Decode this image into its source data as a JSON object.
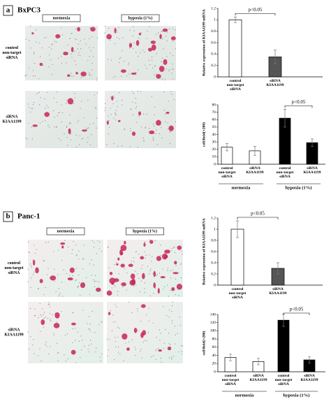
{
  "panels": [
    {
      "label": "a",
      "cell_line": "BxPC3",
      "columns": [
        "normoxia",
        "hypoxia (1%)"
      ],
      "rows": [
        "control non-target siRNA",
        "siRNA KIAA1199"
      ]
    },
    {
      "label": "b",
      "cell_line": "Panc-1",
      "columns": [
        "normoxia",
        "hypoxia (1%)"
      ],
      "rows": [
        "control non-target siRNA",
        "siRNA KIAA1199"
      ]
    }
  ],
  "chart_data": [
    {
      "type": "bar",
      "y_label": "Relative expression of KIAA1199 mRNA",
      "categories": [
        "control non-target siRNA",
        "siRNA KIAA1199"
      ],
      "values": [
        1.0,
        0.35
      ],
      "errors": [
        0.05,
        0.12
      ],
      "colors": [
        "#ffffff",
        "#555555"
      ],
      "ylim": [
        0,
        1.2
      ],
      "yticks": [
        0,
        0.2,
        0.4,
        0.6,
        0.8,
        1,
        1.2
      ],
      "annotation": "p<0.05"
    },
    {
      "type": "bar",
      "y_label": "cell/field(×200)",
      "categories": [
        "control non-target siRNA",
        "siRNA KIAA1199",
        "control non-target siRNA",
        "siRNA KIAA1199"
      ],
      "groups": [
        "normoxia",
        "hypoxia (1%)"
      ],
      "values": [
        23,
        18,
        62,
        29
      ],
      "errors": [
        5,
        6,
        12,
        5
      ],
      "colors": [
        "#ffffff",
        "#ffffff",
        "#000000",
        "#000000"
      ],
      "ylim": [
        0,
        80
      ],
      "yticks": [
        0,
        10,
        20,
        30,
        40,
        50,
        60,
        70,
        80
      ],
      "annotation": "p<0.05"
    },
    {
      "type": "bar",
      "y_label": "Relative expression of KIAA1199 mRNA",
      "categories": [
        "control non-target siRNA",
        "siRNA KIAA1199"
      ],
      "values": [
        1.0,
        0.3
      ],
      "errors": [
        0.15,
        0.1
      ],
      "colors": [
        "#ffffff",
        "#555555"
      ],
      "ylim": [
        0,
        1.2
      ],
      "yticks": [
        0,
        0.2,
        0.4,
        0.6,
        0.8,
        1,
        1.2
      ],
      "annotation": "p<0.05"
    },
    {
      "type": "bar",
      "y_label": "cell/field(×200)",
      "categories": [
        "control non-target siRNA",
        "siRNA KIAA1199",
        "control non-target siRNA",
        "siRNA KIAA1199"
      ],
      "groups": [
        "normoxia",
        "hypoxia (1%)"
      ],
      "values": [
        35,
        25,
        126,
        29
      ],
      "errors": [
        8,
        8,
        15,
        8
      ],
      "colors": [
        "#ffffff",
        "#ffffff",
        "#000000",
        "#000000"
      ],
      "ylim": [
        0,
        140
      ],
      "yticks": [
        0,
        20,
        40,
        60,
        80,
        100,
        120,
        140
      ],
      "annotation": "p<0.05"
    }
  ]
}
